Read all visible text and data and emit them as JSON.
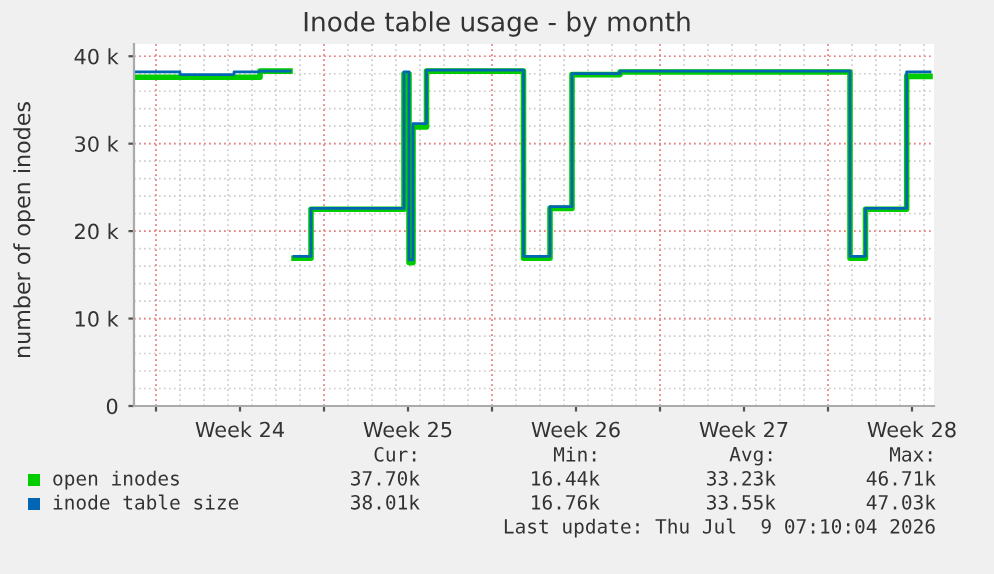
{
  "chart_data": {
    "type": "step",
    "title": "Inode table usage - by month",
    "ylabel": "number of open inodes",
    "x": [
      "2026-06-07T02:00",
      "2026-06-09T00:00",
      "2026-06-11T06:00",
      "2026-06-12T08:00",
      "2026-06-13T14:00",
      "2026-06-13T18:00",
      "2026-06-14T11:00",
      "2026-06-18T08:00",
      "2026-06-18T13:00",
      "2026-06-18T17:00",
      "2026-06-19T06:30",
      "2026-06-23T07:30",
      "2026-06-24T10:00",
      "2026-06-25T08:00",
      "2026-06-27T08:00",
      "2026-07-06T22:00",
      "2026-07-07T13:30",
      "2026-07-09T06:40",
      "2026-07-10T06:00"
    ],
    "series": [
      {
        "name": "open inodes",
        "color": "#00cc00",
        "values": [
          37600,
          37600,
          37600,
          38300,
          null,
          16900,
          22500,
          38000,
          16400,
          31900,
          38300,
          16900,
          22600,
          37900,
          38200,
          16900,
          22500,
          37700,
          37700
        ]
      },
      {
        "name": "inode table size",
        "color": "#0066b3",
        "values": [
          38200,
          37900,
          38200,
          38300,
          null,
          17100,
          22600,
          38200,
          16700,
          32300,
          38400,
          17100,
          22800,
          38000,
          38300,
          17100,
          22600,
          38200,
          38200
        ]
      }
    ],
    "xlim": [
      "2026-06-07T02:00",
      "2026-07-10T10:00"
    ],
    "xticks": [
      {
        "value": "2026-06-08",
        "label": null
      },
      {
        "value": "2026-06-11T12:00",
        "label": "Week 24"
      },
      {
        "value": "2026-06-15",
        "label": null
      },
      {
        "value": "2026-06-18T12:00",
        "label": "Week 25"
      },
      {
        "value": "2026-06-22",
        "label": null
      },
      {
        "value": "2026-06-25T12:00",
        "label": "Week 26"
      },
      {
        "value": "2026-06-29",
        "label": null
      },
      {
        "value": "2026-07-02T12:00",
        "label": "Week 27"
      },
      {
        "value": "2026-07-06",
        "label": null
      },
      {
        "value": "2026-07-09T12:00",
        "label": "Week 28"
      }
    ],
    "ylim": [
      0,
      41400
    ],
    "yticks": [
      0,
      {
        "value": 10000,
        "label": "10 k"
      },
      {
        "value": 20000,
        "label": "20 k"
      },
      {
        "value": 30000,
        "label": "30 k"
      },
      {
        "value": 40000,
        "label": "40 k"
      }
    ],
    "grid": true,
    "legend": "bottom",
    "annotations": [
      "Cur:",
      "Min:",
      "Avg:",
      "Max:",
      "37.70k",
      "16.44k",
      "33.23k",
      "46.71k",
      "38.01k",
      "16.76k",
      "33.55k",
      "47.03k",
      "Last update: Thu Jul  9 07:10:04 2026"
    ]
  }
}
